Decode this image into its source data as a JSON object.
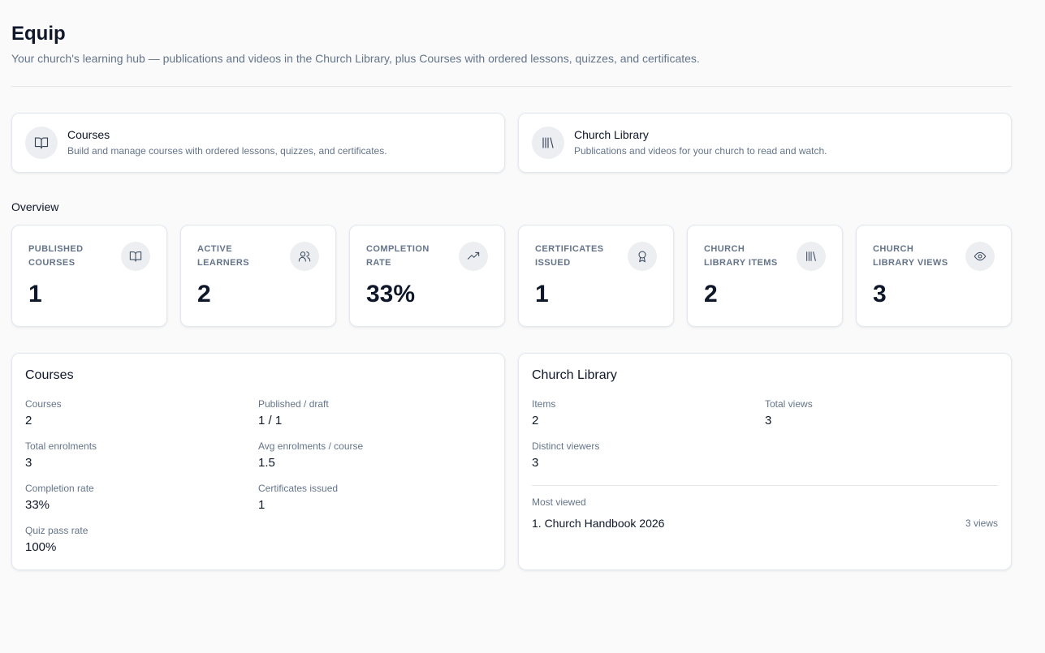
{
  "header": {
    "title": "Equip",
    "subtitle": "Your church's learning hub — publications and videos in the Church Library, plus Courses with ordered lessons, quizzes, and certificates."
  },
  "nav_cards": [
    {
      "title": "Courses",
      "description": "Build and manage courses with ordered lessons, quizzes, and certificates."
    },
    {
      "title": "Church Library",
      "description": "Publications and videos for your church to read and watch."
    }
  ],
  "overview": {
    "title": "Overview",
    "stats": [
      {
        "label": "PUBLISHED COURSES",
        "value": "1"
      },
      {
        "label": "ACTIVE LEARNERS",
        "value": "2"
      },
      {
        "label": "COMPLETION RATE",
        "value": "33%"
      },
      {
        "label": "CERTIFICATES ISSUED",
        "value": "1"
      },
      {
        "label": "CHURCH LIBRARY ITEMS",
        "value": "2"
      },
      {
        "label": "CHURCH LIBRARY VIEWS",
        "value": "3"
      }
    ]
  },
  "courses_panel": {
    "title": "Courses",
    "metrics": [
      {
        "label": "Courses",
        "value": "2"
      },
      {
        "label": "Published / draft",
        "value": "1 / 1"
      },
      {
        "label": "Total enrolments",
        "value": "3"
      },
      {
        "label": "Avg enrolments / course",
        "value": "1.5"
      },
      {
        "label": "Completion rate",
        "value": "33%"
      },
      {
        "label": "Certificates issued",
        "value": "1"
      },
      {
        "label": "Quiz pass rate",
        "value": "100%"
      }
    ]
  },
  "library_panel": {
    "title": "Church Library",
    "metrics": [
      {
        "label": "Items",
        "value": "2"
      },
      {
        "label": "Total views",
        "value": "3"
      },
      {
        "label": "Distinct viewers",
        "value": "3"
      }
    ],
    "most_viewed": {
      "title": "Most viewed",
      "items": [
        {
          "name": "1. Church Handbook 2026",
          "views": "3 views"
        }
      ]
    }
  }
}
